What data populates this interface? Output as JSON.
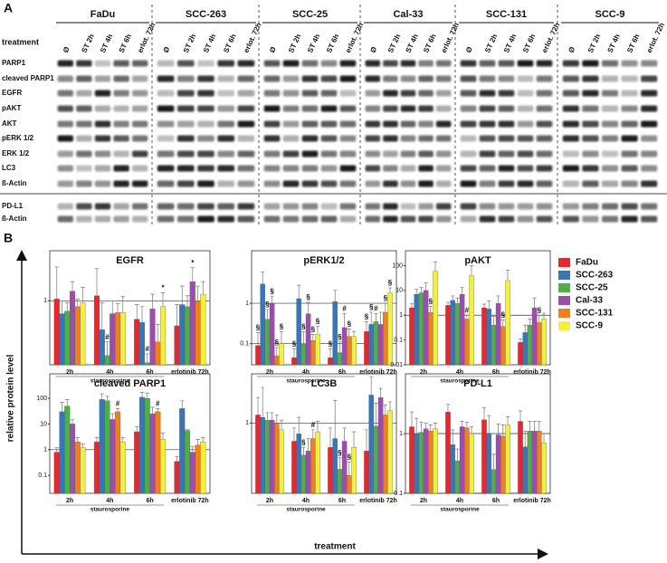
{
  "blots": {
    "label": "A",
    "treatment_label": "treatment",
    "cell_lines": [
      "FaDu",
      "SCC-263",
      "SCC-25",
      "Cal-33",
      "SCC-131",
      "SCC-9"
    ],
    "treatments": [
      "Ø",
      "ST 2h",
      "ST 4h",
      "ST 6h",
      "erlot. 72h"
    ],
    "proteins": [
      "PARP1",
      "cleaved PARP1",
      "EGFR",
      "pAKT",
      "AKT",
      "pERK 1/2",
      "ERK 1/2",
      "LC3",
      "ß-Actin"
    ],
    "proteins_lower": [
      "PD-L1",
      "ß-Actin"
    ]
  },
  "panel_b": {
    "label": "B",
    "y_label": "relative protein level",
    "x_label": "treatment"
  },
  "legend": [
    {
      "name": "FaDu",
      "color": "#e8262b"
    },
    {
      "name": "SCC-263",
      "color": "#3a75b5"
    },
    {
      "name": "SCC-25",
      "color": "#4daf4a"
    },
    {
      "name": "Cal-33",
      "color": "#9a4fa8"
    },
    {
      "name": "SCC-131",
      "color": "#f07f1c"
    },
    {
      "name": "SCC-9",
      "color": "#f4f03c"
    }
  ],
  "chart_data": [
    {
      "type": "bar",
      "title": "EGFR",
      "log_scale": true,
      "group_label": "staurosporine",
      "categories": [
        "2h",
        "4h",
        "6h",
        "erlotinib 72h"
      ],
      "ylim": [
        0.17,
        4
      ],
      "yticks": [
        1
      ],
      "grid": true,
      "series": [
        {
          "values": [
            1.05,
            1.15,
            0.6,
            0.5
          ],
          "errors": [
            1.5,
            1.3,
            0.3,
            0.4
          ]
        },
        {
          "values": [
            0.7,
            0.45,
            0.55,
            0.9
          ],
          "errors": [
            0.3,
            0.5,
            0.3,
            0.6
          ]
        },
        {
          "values": [
            0.75,
            0.22,
            0.18,
            0.85
          ],
          "errors": [
            0.2,
            0.1,
            0.05,
            0.3
          ],
          "marks": [
            null,
            "#",
            "#",
            null
          ]
        },
        {
          "values": [
            1.3,
            0.7,
            0.8,
            1.7
          ],
          "errors": [
            0.4,
            0.3,
            0.4,
            0.8
          ],
          "marks": [
            null,
            null,
            null,
            "*"
          ]
        },
        {
          "values": [
            0.85,
            0.72,
            0.32,
            1.0
          ],
          "errors": [
            0.2,
            0.2,
            0.2,
            0.5
          ]
        },
        {
          "values": [
            0.95,
            0.72,
            0.85,
            1.2
          ],
          "errors": [
            0.5,
            0.4,
            0.4,
            0.5
          ],
          "marks": [
            null,
            null,
            "*",
            null
          ]
        }
      ]
    },
    {
      "type": "bar",
      "title": "pERK1/2",
      "log_scale": true,
      "group_label": "staurosporine",
      "categories": [
        "2h",
        "4h",
        "6h",
        "erlotinib 72h"
      ],
      "ylim": [
        0.03,
        20
      ],
      "yticks": [
        1,
        0.1
      ],
      "grid": true,
      "series": [
        {
          "values": [
            0.09,
            0.045,
            0.045,
            0.2
          ],
          "errors": [
            0.1,
            0.03,
            0.03,
            0.15
          ],
          "marks": [
            "§",
            "§",
            "§",
            "§"
          ]
        },
        {
          "values": [
            3.0,
            1.3,
            1.1,
            0.3
          ],
          "errors": [
            3,
            1.5,
            1,
            0.3
          ],
          "marks": [
            null,
            null,
            null,
            "§"
          ]
        },
        {
          "values": [
            0.4,
            0.1,
            0.06,
            0.35
          ],
          "errors": [
            0.3,
            0.1,
            0.05,
            0.2
          ],
          "marks": [
            "§",
            "§",
            "§",
            "#"
          ]
        },
        {
          "values": [
            1.0,
            0.55,
            0.25,
            0.3
          ],
          "errors": [
            0.5,
            0.5,
            0.3,
            0.3
          ],
          "marks": [
            "§",
            "§",
            "#",
            null
          ]
        },
        {
          "values": [
            0.05,
            0.12,
            0.15,
            0.6
          ],
          "errors": [
            0.03,
            0.05,
            0.08,
            0.4
          ],
          "marks": [
            "§",
            "§",
            "§",
            "§"
          ]
        },
        {
          "values": [
            0.1,
            0.17,
            0.15,
            1.8
          ],
          "errors": [
            0.1,
            0.1,
            0.05,
            0.6
          ],
          "marks": [
            "§",
            "§",
            null,
            "§"
          ]
        }
      ]
    },
    {
      "type": "bar",
      "title": "pAKT",
      "log_scale": true,
      "group_label": "staurosporine",
      "categories": [
        "2h",
        "4h",
        "6h",
        "erlotinib 72h"
      ],
      "ylim": [
        0.01,
        400
      ],
      "yticks": [
        100,
        10,
        1,
        0.1,
        0.01
      ],
      "grid": true,
      "ref_line": 1,
      "series": [
        {
          "values": [
            2,
            2.5,
            2,
            0.08
          ],
          "errors": [
            1,
            0.8,
            0.8,
            0.03
          ]
        },
        {
          "values": [
            7,
            4,
            1.8,
            0.2
          ],
          "errors": [
            4,
            2,
            2,
            0.2
          ]
        },
        {
          "values": [
            8,
            3,
            0.4,
            0.4
          ],
          "errors": [
            5,
            2,
            0.5,
            0.3
          ]
        },
        {
          "values": [
            10,
            7,
            3,
            2
          ],
          "errors": [
            10,
            6,
            3,
            3
          ]
        },
        {
          "values": [
            1.3,
            0.7,
            0.35,
            0.5
          ],
          "errors": [
            1,
            0.3,
            0.3,
            0.5
          ],
          "marks": [
            "§",
            "#",
            "§",
            "§"
          ]
        },
        {
          "values": [
            60,
            40,
            25,
            0.7
          ],
          "errors": [
            80,
            60,
            40,
            0.5
          ]
        }
      ]
    },
    {
      "type": "bar",
      "title": "cleaved PARP1",
      "log_scale": true,
      "group_label": "staurosporine",
      "categories": [
        "2h",
        "4h",
        "6h",
        "erlotinib 72h"
      ],
      "ylim": [
        0.02,
        900
      ],
      "yticks": [
        100,
        10,
        1,
        0.1
      ],
      "grid": true,
      "ref_line": 1,
      "series": [
        {
          "values": [
            0.8,
            2,
            5,
            0.35
          ],
          "errors": [
            0.4,
            1,
            3,
            0.2
          ]
        },
        {
          "values": [
            30,
            90,
            110,
            40
          ],
          "errors": [
            40,
            60,
            60,
            40
          ]
        },
        {
          "values": [
            50,
            80,
            100,
            5.5
          ],
          "errors": [
            40,
            40,
            60,
            0.5
          ]
        },
        {
          "values": [
            10,
            15,
            25,
            0.8
          ],
          "errors": [
            5,
            10,
            20,
            0.5
          ]
        },
        {
          "values": [
            2,
            30,
            30,
            1.5
          ],
          "errors": [
            1,
            10,
            10,
            1
          ],
          "marks": [
            null,
            "#",
            "#",
            null
          ]
        },
        {
          "values": [
            1.2,
            2,
            2.5,
            2
          ],
          "errors": [
            0.5,
            1,
            2,
            1
          ]
        }
      ]
    },
    {
      "type": "bar",
      "title": "LC3B",
      "log_scale": true,
      "group_label": "staurosporine",
      "categories": [
        "2h",
        "4h",
        "6h",
        "erlotinib 72h"
      ],
      "ylim": [
        0.1,
        5
      ],
      "yticks": [
        1
      ],
      "grid": true,
      "series": [
        {
          "values": [
            1.3,
            0.55,
            0.45,
            0.4
          ],
          "errors": [
            1,
            0.3,
            0.4,
            0.4
          ]
        },
        {
          "values": [
            1.2,
            0.7,
            0.6,
            2.5
          ],
          "errors": [
            2,
            0.5,
            1.5,
            2
          ]
        },
        {
          "values": [
            1.1,
            0.35,
            0.22,
            0.9
          ],
          "errors": [
            0.3,
            0.1,
            0.1,
            1
          ],
          "marks": [
            null,
            "§",
            "§",
            null
          ]
        },
        {
          "values": [
            1.1,
            0.4,
            0.55,
            2.3
          ],
          "errors": [
            0.3,
            0.2,
            0.3,
            0.8
          ]
        },
        {
          "values": [
            1.0,
            0.6,
            0.18,
            1.3
          ],
          "errors": [
            0.3,
            0.2,
            0.1,
            0.5
          ],
          "marks": [
            null,
            "#",
            "§",
            null
          ]
        },
        {
          "values": [
            0.8,
            0.75,
            0.45,
            1.5
          ],
          "errors": [
            0.3,
            0.3,
            0.3,
            0.5
          ]
        }
      ]
    },
    {
      "type": "bar",
      "title": "PD-L1",
      "log_scale": true,
      "group_label": "staurosporine",
      "categories": [
        "2h",
        "4h",
        "6h",
        "erlotinib 72h"
      ],
      "ylim": [
        0.1,
        10
      ],
      "yticks": [
        1,
        0.1
      ],
      "grid": true,
      "series": [
        {
          "values": [
            1.3,
            2.3,
            1.7,
            1.6
          ],
          "errors": [
            1,
            0.8,
            1,
            0.8
          ]
        },
        {
          "values": [
            1.0,
            0.65,
            1.0,
            0.6
          ],
          "errors": [
            0.8,
            0.5,
            1,
            0.5
          ]
        },
        {
          "values": [
            1.05,
            0.35,
            0.25,
            1.1
          ],
          "errors": [
            0.5,
            0.2,
            0.2,
            0.5
          ]
        },
        {
          "values": [
            1.2,
            1.3,
            0.95,
            1.1
          ],
          "errors": [
            0.3,
            0.3,
            0.5,
            0.5
          ]
        },
        {
          "values": [
            1.1,
            1.25,
            0.9,
            1.1
          ],
          "errors": [
            0.3,
            0.3,
            0.5,
            0.5
          ]
        },
        {
          "values": [
            1.2,
            1.0,
            1.4,
            0.7
          ],
          "errors": [
            0.3,
            0.3,
            0.5,
            0.3
          ]
        }
      ]
    }
  ]
}
